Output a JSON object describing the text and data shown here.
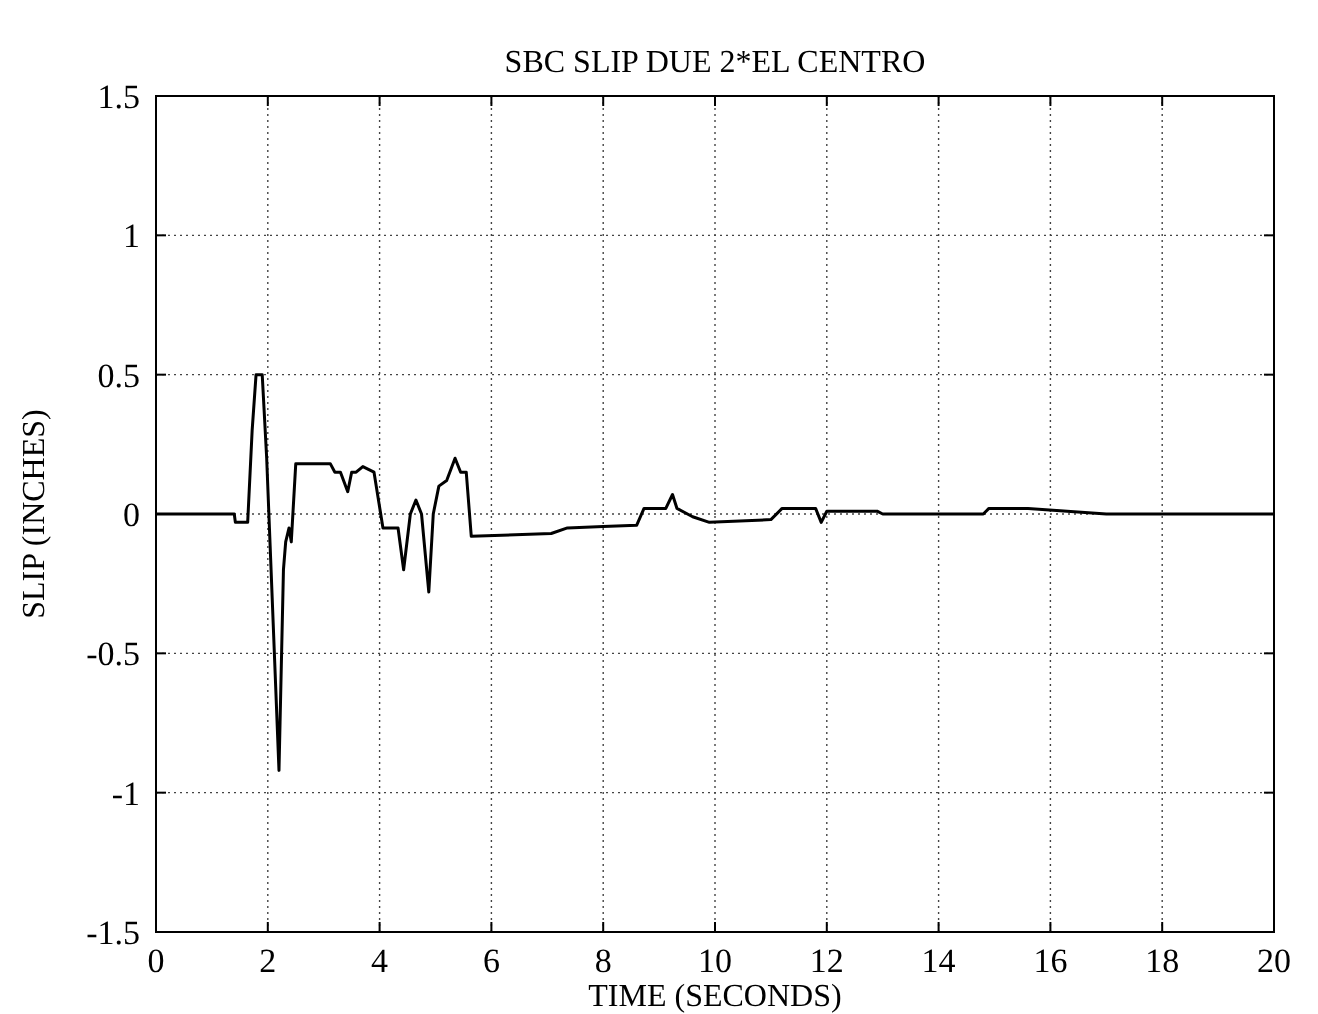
{
  "chart_data": {
    "type": "line",
    "title": "SBC SLIP DUE 2*EL CENTRO",
    "xlabel": "TIME (SECONDS)",
    "ylabel": "SLIP (INCHES)",
    "xlim": [
      0,
      20
    ],
    "xticks": [
      0,
      2,
      4,
      6,
      8,
      10,
      12,
      14,
      16,
      18,
      20
    ],
    "ylim": [
      -1.5,
      1.5
    ],
    "yticks": [
      -1.5,
      -1,
      -0.5,
      0,
      0.5,
      1,
      1.5
    ],
    "grid": true,
    "series": [
      {
        "color": "#000000",
        "x": [
          0,
          1.4,
          1.42,
          1.64,
          1.72,
          1.79,
          1.9,
          1.98,
          2.2,
          2.28,
          2.32,
          2.38,
          2.42,
          2.5,
          3.12,
          3.2,
          3.3,
          3.43,
          3.5,
          3.58,
          3.7,
          3.9,
          4.06,
          4.33,
          4.43,
          4.55,
          4.65,
          4.75,
          4.88,
          4.96,
          5.06,
          5.2,
          5.35,
          5.45,
          5.55,
          5.64,
          7.07,
          7.36,
          8.0,
          8.6,
          8.73,
          9.12,
          9.24,
          9.32,
          9.6,
          9.9,
          11.0,
          11.2,
          11.8,
          11.9,
          12.0,
          12.9,
          13.0,
          14.8,
          14.9,
          15.6,
          16.3,
          17.0,
          20.0
        ],
        "values": [
          0,
          0,
          -0.03,
          -0.03,
          0.3,
          0.5,
          0.5,
          0.2,
          -0.92,
          -0.2,
          -0.1,
          -0.05,
          -0.1,
          0.18,
          0.18,
          0.15,
          0.15,
          0.08,
          0.15,
          0.15,
          0.17,
          0.15,
          -0.05,
          -0.05,
          -0.2,
          0.0,
          0.05,
          0.0,
          -0.28,
          0.0,
          0.1,
          0.12,
          0.2,
          0.15,
          0.15,
          -0.08,
          -0.07,
          -0.05,
          -0.045,
          -0.04,
          0.02,
          0.02,
          0.07,
          0.02,
          -0.01,
          -0.03,
          -0.02,
          0.02,
          0.02,
          -0.03,
          0.01,
          0.01,
          0,
          0,
          0.02,
          0.02,
          0.01,
          0,
          0
        ]
      }
    ]
  }
}
